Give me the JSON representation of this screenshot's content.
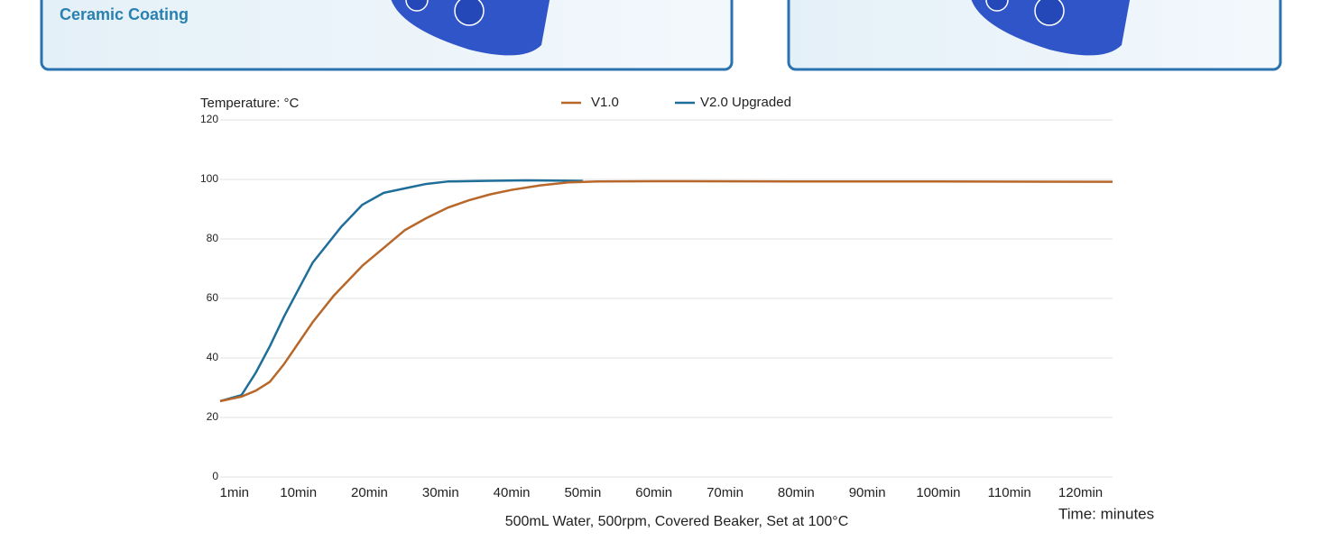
{
  "cards": [
    {
      "title": "Ceramic Coating"
    }
  ],
  "chart_data": {
    "type": "line",
    "y_label": "Temperature: °C",
    "x_label": "Time: minutes",
    "caption": "500mL Water, 500rpm, Covered Beaker, Set at 100°C",
    "xlim": [
      -1,
      124.5
    ],
    "ylim": [
      0,
      120
    ],
    "yticks": [
      0,
      20,
      40,
      60,
      80,
      100,
      120
    ],
    "xticks": [
      {
        "value": 1,
        "label": "1min"
      },
      {
        "value": 10,
        "label": "10min"
      },
      {
        "value": 20,
        "label": "20min"
      },
      {
        "value": 30,
        "label": "30min"
      },
      {
        "value": 40,
        "label": "40min"
      },
      {
        "value": 50,
        "label": "50min"
      },
      {
        "value": 60,
        "label": "60min"
      },
      {
        "value": 70,
        "label": "70min"
      },
      {
        "value": 80,
        "label": "80min"
      },
      {
        "value": 90,
        "label": "90min"
      },
      {
        "value": 100,
        "label": "100min"
      },
      {
        "value": 110,
        "label": "110min"
      },
      {
        "value": 120,
        "label": "120min"
      }
    ],
    "grid": true,
    "series": [
      {
        "name": "V2.0 Upgraded",
        "color": "#1f6e99",
        "x": [
          -1,
          2,
          4,
          6,
          8,
          10,
          12,
          14,
          16,
          19,
          22,
          25,
          28,
          31,
          36,
          42,
          50
        ],
        "values": [
          25.5,
          27.5,
          35,
          44,
          54,
          63,
          72,
          78,
          84,
          91.5,
          95.5,
          97,
          98.5,
          99.3,
          99.5,
          99.7,
          99.5
        ]
      },
      {
        "name": "V1.0",
        "color": "#b8672a",
        "x": [
          -1,
          2,
          4,
          6,
          8,
          10,
          12,
          15,
          19,
          22,
          25,
          28,
          31,
          34,
          37,
          40,
          44,
          48,
          52,
          60,
          80,
          100,
          124.5
        ],
        "values": [
          25.5,
          27,
          29,
          32,
          38,
          45,
          52,
          61,
          71,
          77,
          83,
          87,
          90.5,
          93,
          95,
          96.5,
          98,
          99,
          99.3,
          99.4,
          99.3,
          99.3,
          99.2
        ]
      }
    ]
  }
}
